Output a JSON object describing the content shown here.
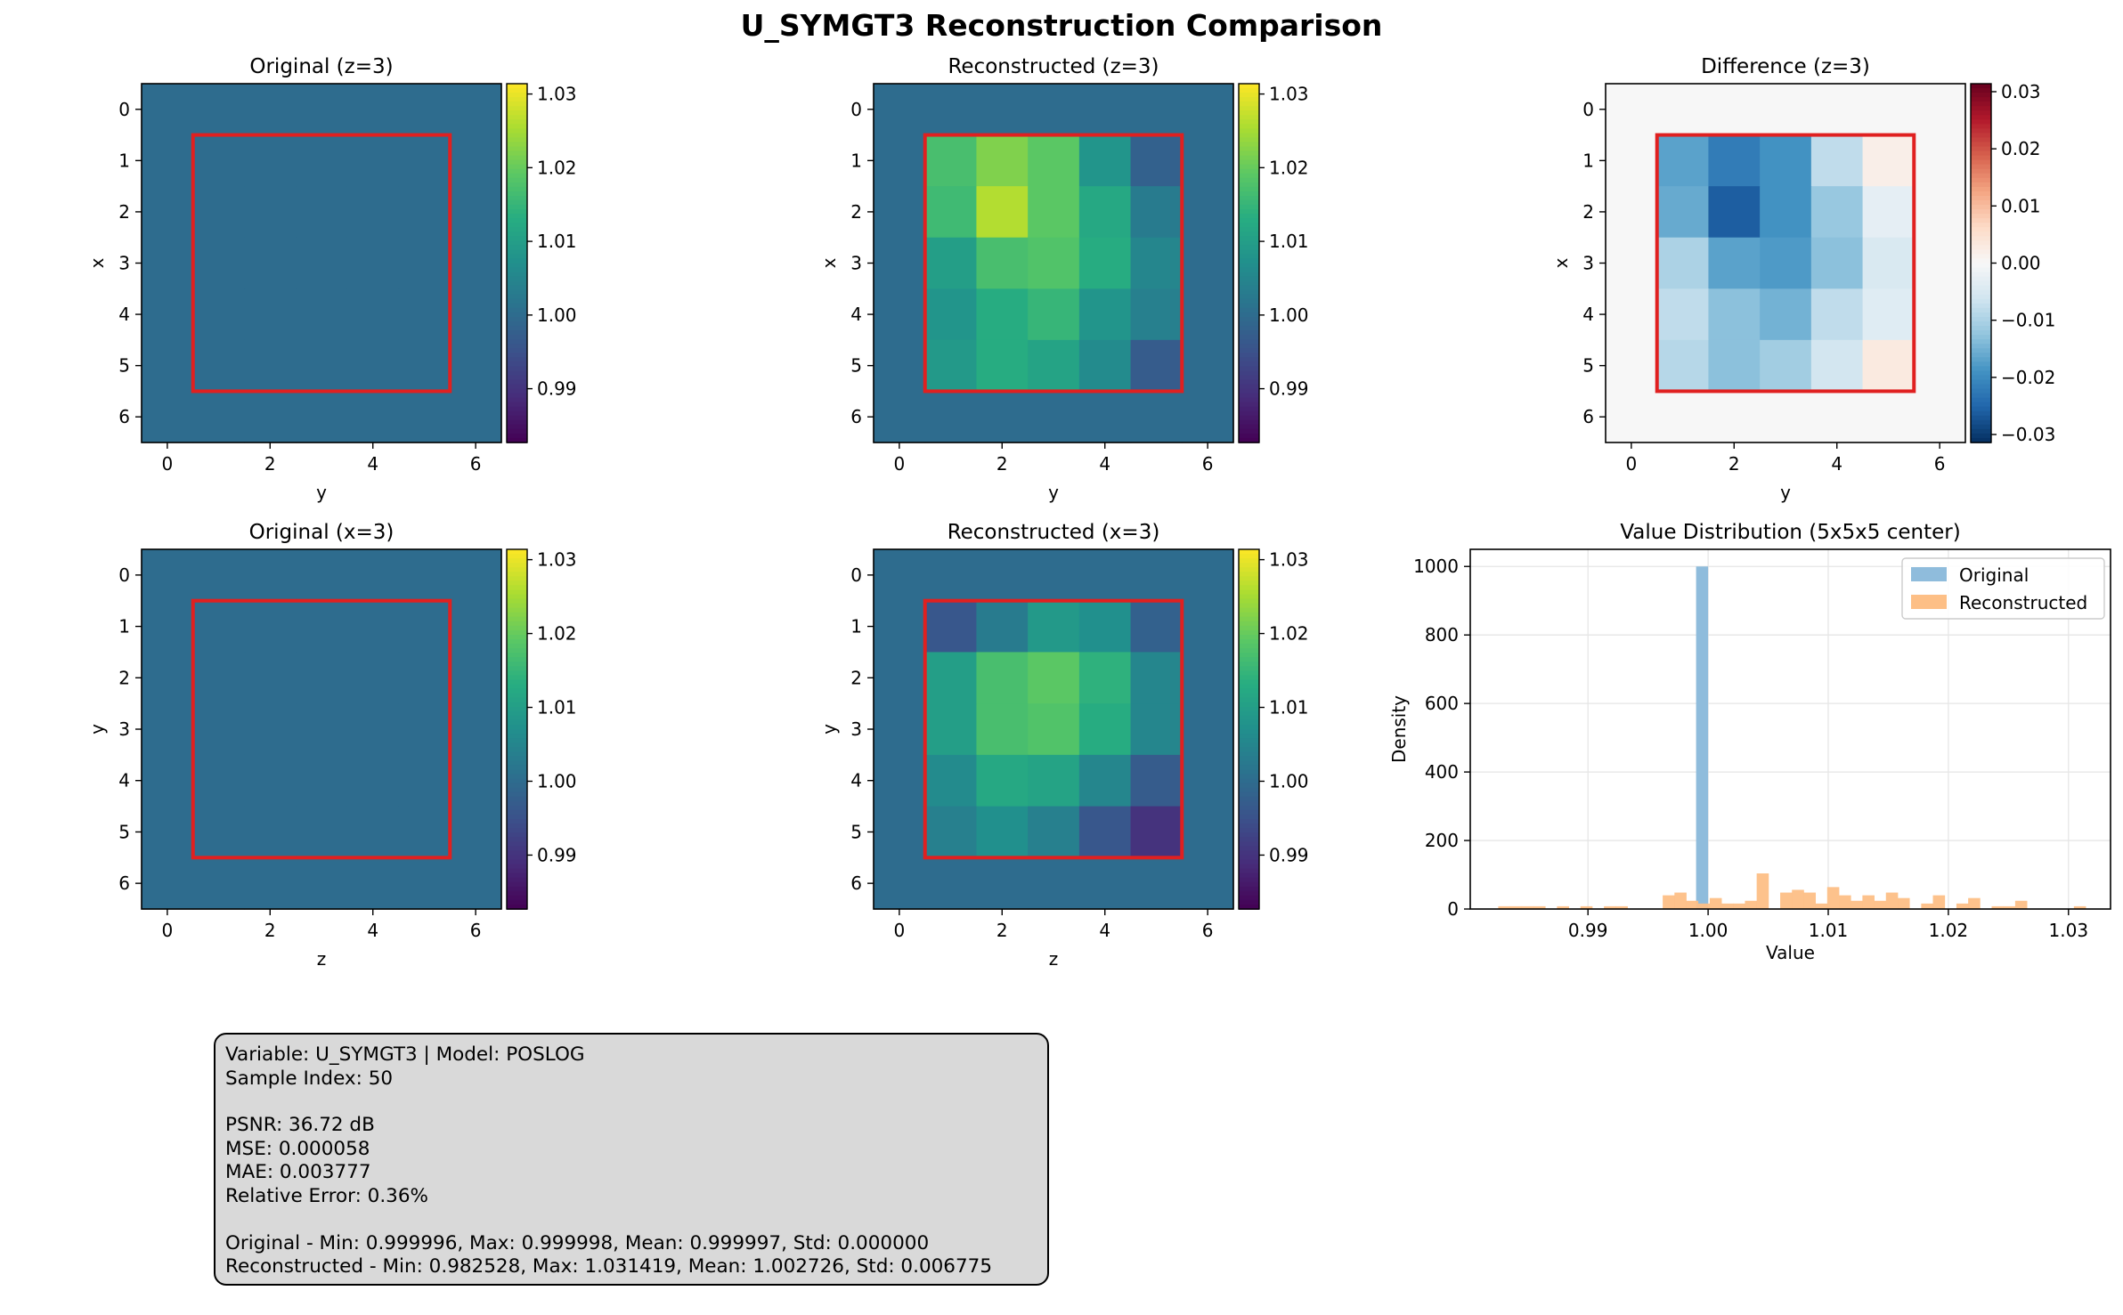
{
  "figure": {
    "suptitle": "U_SYMGT3 Reconstruction Comparison"
  },
  "colors": {
    "box": "#e02020",
    "original_fill": "#2d6e8e",
    "hist_original": "#8fbcdc",
    "hist_reconstructed": "#fdbf86"
  },
  "chart_data": [
    {
      "type": "heatmap",
      "title": "Original (z=3)",
      "xlabel": "y",
      "ylabel": "x",
      "x_ticks": [
        "0",
        "2",
        "4",
        "6"
      ],
      "y_ticks": [
        "0",
        "1",
        "2",
        "3",
        "4",
        "5",
        "6"
      ],
      "colormap": "viridis",
      "clim": [
        0.9827,
        1.0314
      ],
      "colorbar_ticks": [
        "0.99",
        "1.00",
        "1.01",
        "1.02",
        "1.03"
      ],
      "box": [
        1,
        5,
        1,
        5
      ],
      "values": [
        [
          1,
          1,
          1,
          1,
          1,
          1,
          1
        ],
        [
          1,
          1,
          1,
          1,
          1,
          1,
          1
        ],
        [
          1,
          1,
          1,
          1,
          1,
          1,
          1
        ],
        [
          1,
          1,
          1,
          1,
          1,
          1,
          1
        ],
        [
          1,
          1,
          1,
          1,
          1,
          1,
          1
        ],
        [
          1,
          1,
          1,
          1,
          1,
          1,
          1
        ],
        [
          1,
          1,
          1,
          1,
          1,
          1,
          1
        ]
      ]
    },
    {
      "type": "heatmap",
      "title": "Reconstructed (z=3)",
      "xlabel": "y",
      "ylabel": "x",
      "x_ticks": [
        "0",
        "2",
        "4",
        "6"
      ],
      "y_ticks": [
        "0",
        "1",
        "2",
        "3",
        "4",
        "5",
        "6"
      ],
      "colormap": "viridis",
      "clim": [
        0.9827,
        1.0314
      ],
      "colorbar_ticks": [
        "0.99",
        "1.00",
        "1.01",
        "1.02",
        "1.03"
      ],
      "box": [
        1,
        5,
        1,
        5
      ],
      "values": [
        [
          1,
          1,
          1,
          1,
          1,
          1,
          1
        ],
        [
          1,
          1.017,
          1.022,
          1.019,
          1.008,
          0.998,
          1
        ],
        [
          1,
          1.016,
          1.026,
          1.019,
          1.012,
          1.003,
          1
        ],
        [
          1,
          1.01,
          1.017,
          1.018,
          1.013,
          1.005,
          1
        ],
        [
          1,
          1.008,
          1.013,
          1.015,
          1.008,
          1.004,
          1
        ],
        [
          1,
          1.009,
          1.013,
          1.011,
          1.006,
          0.997,
          1
        ],
        [
          1,
          1,
          1,
          1,
          1,
          1,
          1
        ]
      ]
    },
    {
      "type": "heatmap",
      "title": "Difference (z=3)",
      "xlabel": "y",
      "ylabel": "x",
      "x_ticks": [
        "0",
        "2",
        "4",
        "6"
      ],
      "y_ticks": [
        "0",
        "1",
        "2",
        "3",
        "4",
        "5",
        "6"
      ],
      "colormap": "RdBu_r",
      "clim": [
        -0.0314,
        0.0314
      ],
      "colorbar_ticks": [
        "-0.03",
        "-0.02",
        "-0.01",
        "0.00",
        "0.01",
        "0.02",
        "0.03"
      ],
      "box": [
        1,
        5,
        1,
        5
      ],
      "values": [
        [
          0,
          0,
          0,
          0,
          0,
          0,
          0
        ],
        [
          0,
          -0.017,
          -0.022,
          -0.019,
          -0.008,
          0.002,
          0
        ],
        [
          0,
          -0.016,
          -0.026,
          -0.019,
          -0.012,
          -0.003,
          0
        ],
        [
          0,
          -0.01,
          -0.017,
          -0.018,
          -0.013,
          -0.005,
          0
        ],
        [
          0,
          -0.008,
          -0.013,
          -0.015,
          -0.008,
          -0.004,
          0
        ],
        [
          0,
          -0.009,
          -0.013,
          -0.011,
          -0.006,
          0.003,
          0
        ],
        [
          0,
          0,
          0,
          0,
          0,
          0,
          0
        ]
      ]
    },
    {
      "type": "heatmap",
      "title": "Original (x=3)",
      "xlabel": "z",
      "ylabel": "y",
      "x_ticks": [
        "0",
        "2",
        "4",
        "6"
      ],
      "y_ticks": [
        "0",
        "1",
        "2",
        "3",
        "4",
        "5",
        "6"
      ],
      "colormap": "viridis",
      "clim": [
        0.9827,
        1.0314
      ],
      "colorbar_ticks": [
        "0.99",
        "1.00",
        "1.01",
        "1.02",
        "1.03"
      ],
      "box": [
        1,
        5,
        1,
        5
      ],
      "values": [
        [
          1,
          1,
          1,
          1,
          1,
          1,
          1
        ],
        [
          1,
          1,
          1,
          1,
          1,
          1,
          1
        ],
        [
          1,
          1,
          1,
          1,
          1,
          1,
          1
        ],
        [
          1,
          1,
          1,
          1,
          1,
          1,
          1
        ],
        [
          1,
          1,
          1,
          1,
          1,
          1,
          1
        ],
        [
          1,
          1,
          1,
          1,
          1,
          1,
          1
        ],
        [
          1,
          1,
          1,
          1,
          1,
          1,
          1
        ]
      ]
    },
    {
      "type": "heatmap",
      "title": "Reconstructed (x=3)",
      "xlabel": "z",
      "ylabel": "y",
      "x_ticks": [
        "0",
        "2",
        "4",
        "6"
      ],
      "y_ticks": [
        "0",
        "1",
        "2",
        "3",
        "4",
        "5",
        "6"
      ],
      "colormap": "viridis",
      "clim": [
        0.9827,
        1.0314
      ],
      "colorbar_ticks": [
        "0.99",
        "1.00",
        "1.01",
        "1.02",
        "1.03"
      ],
      "box": [
        1,
        5,
        1,
        5
      ],
      "values": [
        [
          1,
          1,
          1,
          1,
          1,
          1,
          1
        ],
        [
          1,
          0.996,
          1.003,
          1.009,
          1.007,
          0.998,
          1
        ],
        [
          1,
          1.01,
          1.017,
          1.019,
          1.014,
          1.005,
          1
        ],
        [
          1,
          1.01,
          1.017,
          1.018,
          1.013,
          1.005,
          1
        ],
        [
          1,
          1.006,
          1.012,
          1.011,
          1.005,
          0.997,
          1
        ],
        [
          1,
          1.004,
          1.007,
          1.004,
          0.996,
          0.99,
          1
        ],
        [
          1,
          1,
          1,
          1,
          1,
          1,
          1
        ]
      ]
    },
    {
      "type": "bar",
      "subtype": "histogram",
      "title": "Value Distribution (5x5x5 center)",
      "xlabel": "Value",
      "ylabel": "Density",
      "xlim": [
        0.9802,
        1.0335
      ],
      "ylim": [
        0,
        1050
      ],
      "x_ticks": [
        "0.99",
        "1.00",
        "1.01",
        "1.02",
        "1.03"
      ],
      "y_ticks": [
        "0",
        "200",
        "400",
        "600",
        "800",
        "1000"
      ],
      "grid": true,
      "legend": "top-right",
      "series": [
        {
          "name": "Original",
          "bin_width": 0.001,
          "x": [
            0.9995
          ],
          "values": [
            1000
          ]
        },
        {
          "name": "Reconstructed",
          "bin_width": 0.000978,
          "x_start": 0.982528,
          "values": [
            8,
            8,
            8,
            8,
            0,
            8,
            0,
            8,
            0,
            8,
            8,
            0,
            0,
            0,
            40,
            48,
            24,
            16,
            32,
            16,
            16,
            24,
            104,
            0,
            48,
            56,
            48,
            16,
            64,
            40,
            24,
            40,
            24,
            48,
            32,
            0,
            16,
            40,
            0,
            16,
            32,
            0,
            8,
            8,
            24,
            0,
            0,
            0,
            0,
            8
          ]
        }
      ]
    }
  ],
  "stats": {
    "line1": "Variable: U_SYMGT3 | Model: POSLOG",
    "line2": "Sample Index: 50",
    "line3": "PSNR: 36.72 dB",
    "line4": "MSE: 0.000058",
    "line5": "MAE: 0.003777",
    "line6": "Relative Error: 0.36%",
    "line7": "Original - Min: 0.999996, Max: 0.999998, Mean: 0.999997, Std: 0.000000",
    "line8": "Reconstructed - Min: 0.982528, Max: 1.031419, Mean: 1.002726, Std: 0.006775"
  }
}
